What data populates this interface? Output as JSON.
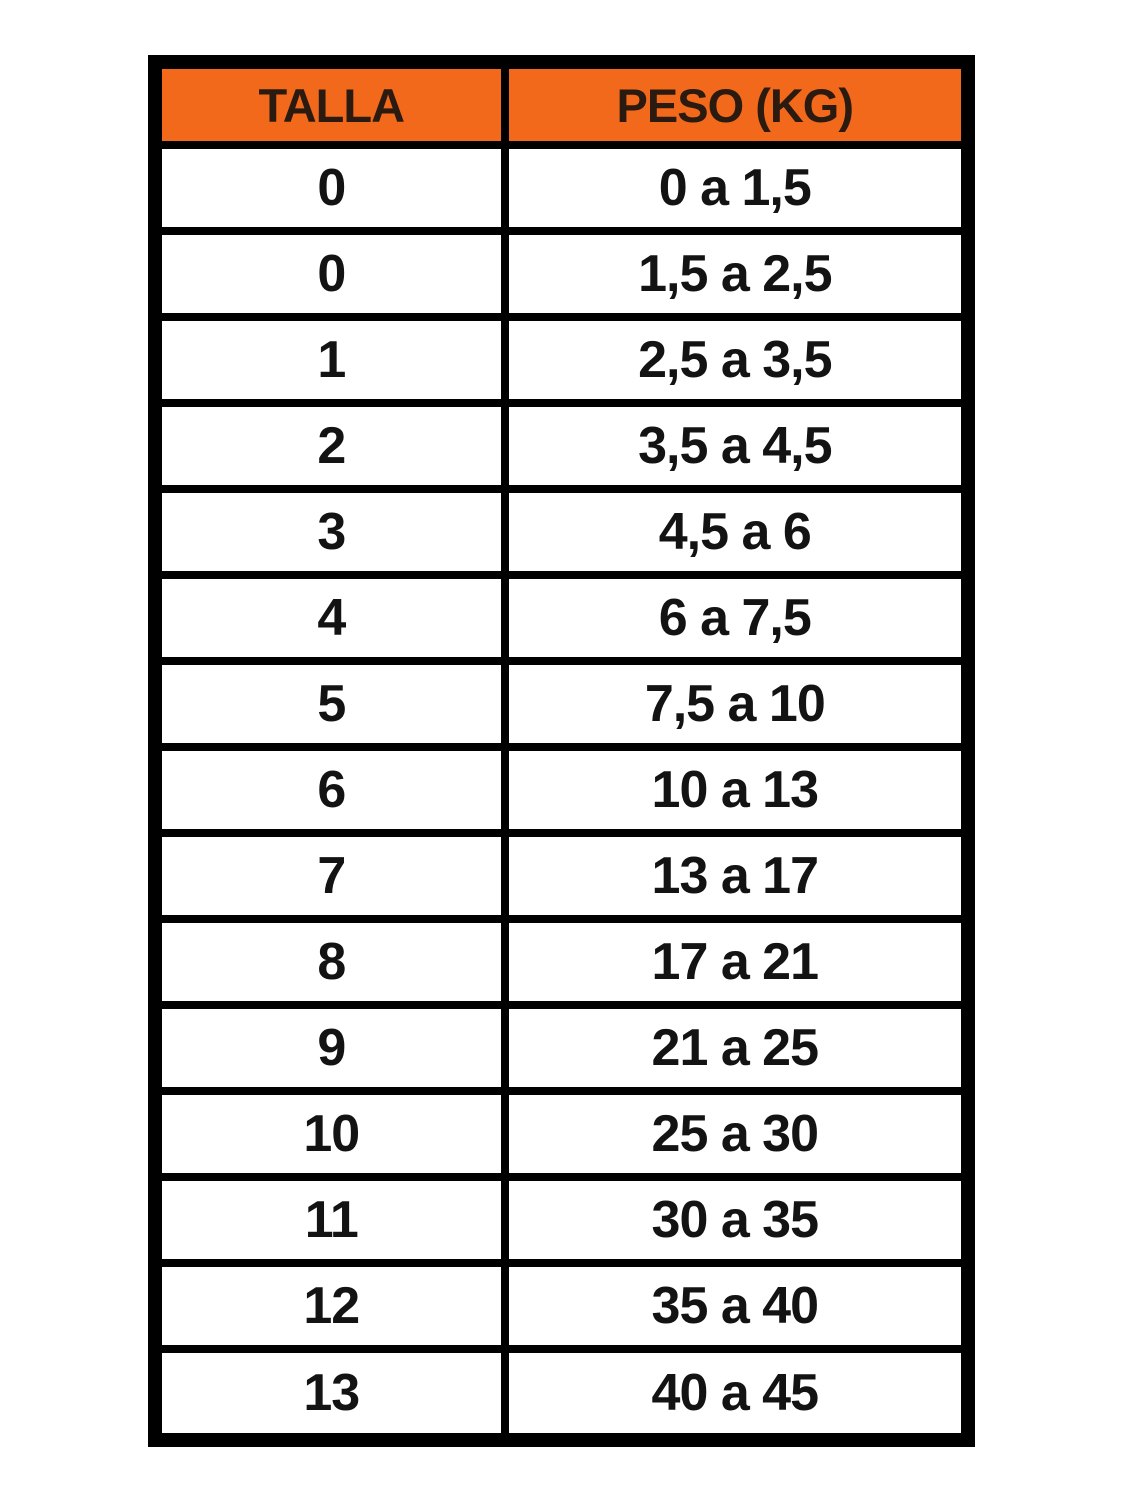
{
  "chart_data": {
    "type": "table",
    "columns": [
      "TALLA",
      "PESO (KG)"
    ],
    "rows": [
      [
        "0",
        "0 a 1,5"
      ],
      [
        "0",
        "1,5 a 2,5"
      ],
      [
        "1",
        "2,5 a 3,5"
      ],
      [
        "2",
        "3,5 a 4,5"
      ],
      [
        "3",
        "4,5 a 6"
      ],
      [
        "4",
        "6 a 7,5"
      ],
      [
        "5",
        "7,5 a 10"
      ],
      [
        "6",
        "10 a 13"
      ],
      [
        "7",
        "13 a 17"
      ],
      [
        "8",
        "17 a 21"
      ],
      [
        "9",
        "21 a 25"
      ],
      [
        "10",
        "25 a 30"
      ],
      [
        "11",
        "30 a 35"
      ],
      [
        "12",
        "35 a 40"
      ],
      [
        "13",
        "40 a 45"
      ]
    ]
  },
  "colors": {
    "header_bg": "#F2691C",
    "header_text": "#2B1A10",
    "cell_text": "#131313",
    "border": "#000000"
  }
}
